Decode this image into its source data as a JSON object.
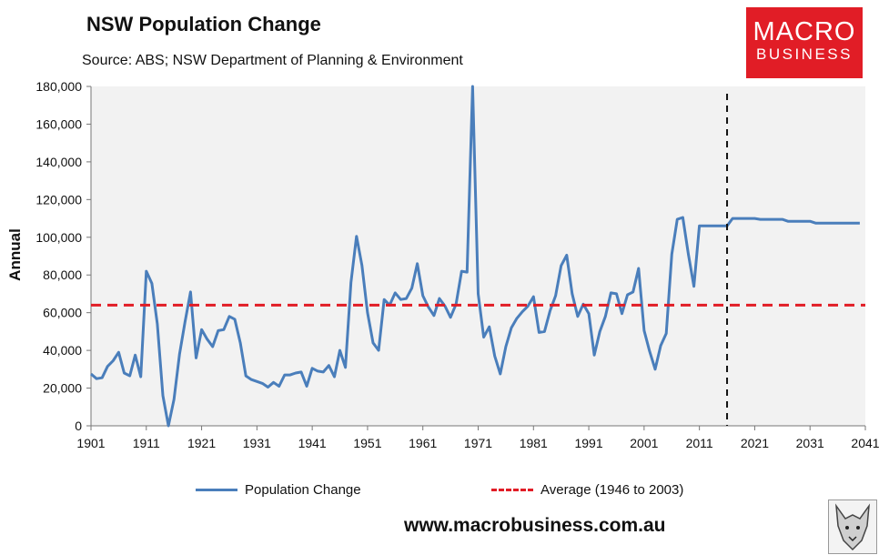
{
  "header": {
    "title": "NSW Population Change",
    "subtitle": "Source: ABS; NSW Department of Planning & Environment"
  },
  "logo": {
    "line1": "MACRO",
    "line2": "BUSINESS",
    "color": "#e11d26"
  },
  "footer": {
    "url": "www.macrobusiness.com.au"
  },
  "chart_data": {
    "type": "line",
    "ylabel": "Annual",
    "xlabel": "",
    "xlim": [
      1901,
      2041
    ],
    "ylim": [
      0,
      180000
    ],
    "x_ticks": [
      "1901",
      "1911",
      "1921",
      "1931",
      "1941",
      "1951",
      "1961",
      "1971",
      "1981",
      "1991",
      "2001",
      "2011",
      "2021",
      "2031",
      "2041"
    ],
    "y_ticks": [
      "0",
      "20,000",
      "40,000",
      "60,000",
      "80,000",
      "100,000",
      "120,000",
      "140,000",
      "160,000",
      "180,000"
    ],
    "grid": false,
    "legend_position": "bottom",
    "plot_background": "#f2f2f2",
    "projection_start_marker": {
      "x": 2016,
      "style": "dashed",
      "color": "#111111"
    },
    "series": [
      {
        "name": "Population Change",
        "color": "#4a7ebb",
        "style": "solid",
        "x": [
          1901,
          1902,
          1903,
          1904,
          1905,
          1906,
          1907,
          1908,
          1909,
          1910,
          1911,
          1912,
          1913,
          1914,
          1915,
          1916,
          1917,
          1918,
          1919,
          1920,
          1921,
          1922,
          1923,
          1924,
          1925,
          1926,
          1927,
          1928,
          1929,
          1930,
          1931,
          1932,
          1933,
          1934,
          1935,
          1936,
          1937,
          1938,
          1939,
          1940,
          1941,
          1942,
          1943,
          1944,
          1945,
          1946,
          1947,
          1948,
          1949,
          1950,
          1951,
          1952,
          1953,
          1954,
          1955,
          1956,
          1957,
          1958,
          1959,
          1960,
          1961,
          1962,
          1963,
          1964,
          1965,
          1966,
          1967,
          1968,
          1969,
          1970,
          1971,
          1972,
          1973,
          1974,
          1975,
          1976,
          1977,
          1978,
          1979,
          1980,
          1981,
          1982,
          1983,
          1984,
          1985,
          1986,
          1987,
          1988,
          1989,
          1990,
          1991,
          1992,
          1993,
          1994,
          1995,
          1996,
          1997,
          1998,
          1999,
          2000,
          2001,
          2002,
          2003,
          2004,
          2005,
          2006,
          2007,
          2008,
          2009,
          2010,
          2011,
          2012,
          2013,
          2014,
          2015,
          2016,
          2017,
          2018,
          2019,
          2020,
          2021,
          2022,
          2023,
          2024,
          2025,
          2026,
          2027,
          2028,
          2029,
          2030,
          2031,
          2032,
          2033,
          2034,
          2035,
          2036,
          2037,
          2038,
          2039,
          2040
        ],
        "values": [
          27500,
          25000,
          25500,
          31500,
          34500,
          39000,
          28000,
          26500,
          37500,
          26000,
          82000,
          75500,
          54000,
          16000,
          0,
          14000,
          38000,
          55000,
          71000,
          36000,
          51000,
          46000,
          42000,
          50500,
          51000,
          58000,
          56500,
          44000,
          26500,
          24500,
          23500,
          22500,
          20500,
          23000,
          21000,
          27000,
          27000,
          28000,
          28500,
          21000,
          30500,
          29000,
          28500,
          32000,
          26000,
          40000,
          31000,
          76000,
          100500,
          85000,
          60000,
          44000,
          40000,
          67000,
          64000,
          70500,
          67000,
          67500,
          73000,
          86000,
          69000,
          63000,
          58500,
          67500,
          63500,
          57500,
          64500,
          82000,
          81500,
          180000,
          70000,
          47000,
          52500,
          37000,
          27500,
          42000,
          52000,
          57000,
          60500,
          63500,
          68500,
          49500,
          50000,
          61000,
          69000,
          85000,
          90500,
          70000,
          58000,
          64500,
          59500,
          37500,
          50000,
          58000,
          70500,
          70000,
          59500,
          69500,
          71000,
          83500,
          50500,
          39500,
          30000,
          42500,
          49000,
          91000,
          109500,
          110500,
          91000,
          74000,
          106000,
          106000,
          106000,
          106000,
          106000,
          106000,
          110000,
          110000,
          110000,
          110000,
          110000,
          109500,
          109500,
          109500,
          109500,
          109500,
          108500,
          108500,
          108500,
          108500,
          108500,
          107500,
          107500,
          107500,
          107500,
          107500,
          107500,
          107500,
          107500,
          107500
        ]
      },
      {
        "name": "Average (1946 to 2003)",
        "color": "#e11d26",
        "style": "dashed",
        "x": [
          1901,
          2041
        ],
        "values": [
          64000,
          64000
        ]
      }
    ]
  }
}
